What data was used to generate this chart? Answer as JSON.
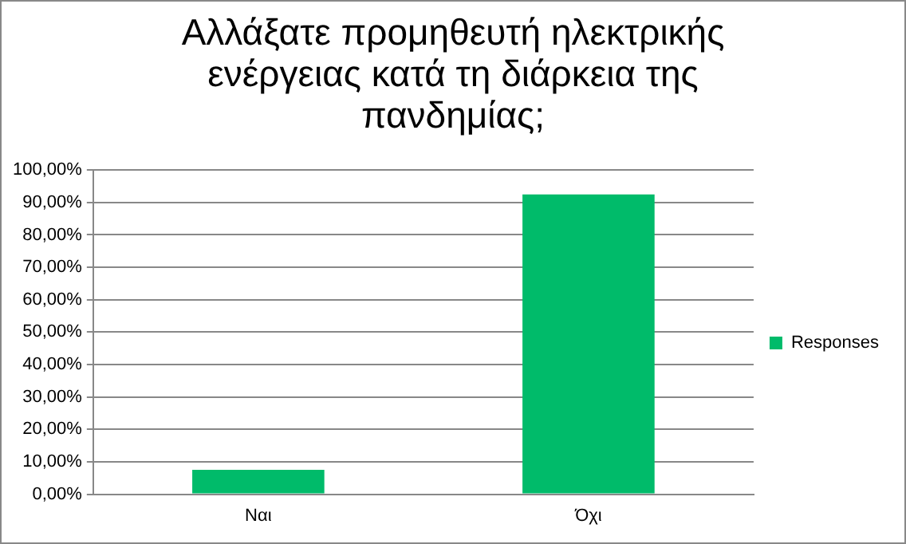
{
  "chart_data": {
    "type": "bar",
    "title": "Αλλάξατε προμηθευτή ηλεκτρικής ενέργειας κατά τη διάρκεια της πανδημίας;",
    "categories": [
      "Ναι",
      "Όχι"
    ],
    "series": [
      {
        "name": "Responses",
        "color": "#00bb6a",
        "values": [
          7.5,
          92.5
        ]
      }
    ],
    "ylim": [
      0,
      100
    ],
    "yticks": [
      {
        "value": 0,
        "label": "0,00%"
      },
      {
        "value": 10,
        "label": "10,00%"
      },
      {
        "value": 20,
        "label": "20,00%"
      },
      {
        "value": 30,
        "label": "30,00%"
      },
      {
        "value": 40,
        "label": "40,00%"
      },
      {
        "value": 50,
        "label": "50,00%"
      },
      {
        "value": 60,
        "label": "60,00%"
      },
      {
        "value": 70,
        "label": "70,00%"
      },
      {
        "value": 80,
        "label": "80,00%"
      },
      {
        "value": 90,
        "label": "90,00%"
      },
      {
        "value": 100,
        "label": "100,00%"
      }
    ],
    "grid": "y",
    "legend": "right"
  }
}
